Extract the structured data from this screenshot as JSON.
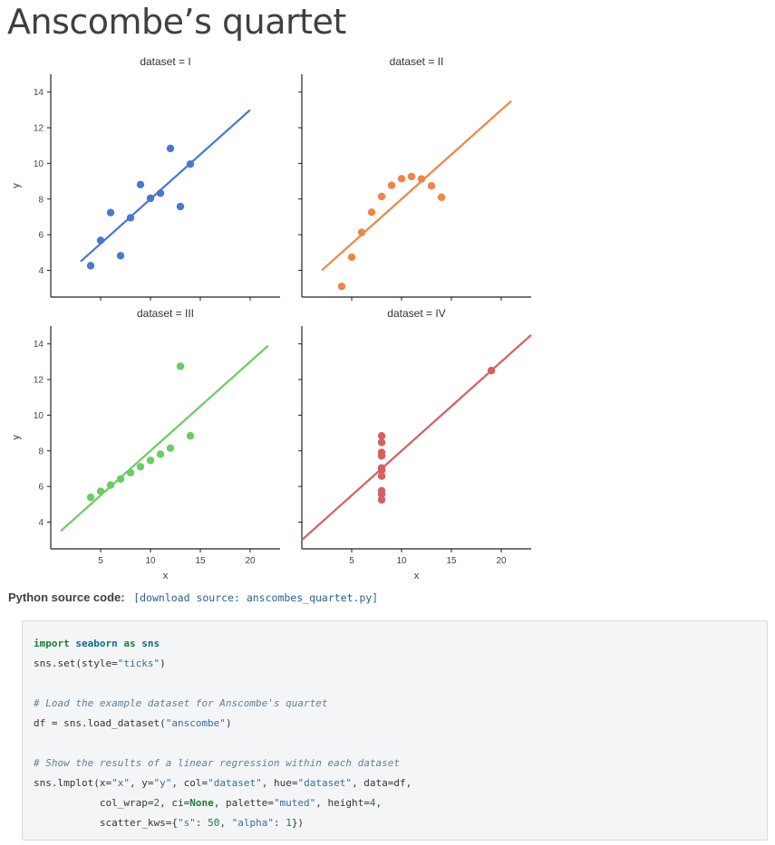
{
  "page": {
    "title": "Anscombe’s quartet",
    "source_label": "Python source code:",
    "download_link": "[download source: anscombes_quartet.py]"
  },
  "code": {
    "l1_kw1": "import",
    "l1_mod": "seaborn",
    "l1_kw2": "as",
    "l1_alias": "sns",
    "l2_a": "sns.set(style=",
    "l2_str": "\"ticks\"",
    "l2_b": ")",
    "l4_comment": "# Load the example dataset for Anscombe's quartet",
    "l5_a": "df = sns.load_dataset(",
    "l5_str": "\"anscombe\"",
    "l5_b": ")",
    "l7_comment": "# Show the results of a linear regression within each dataset",
    "l8_a": "sns.lmplot(x=",
    "l8_s1": "\"x\"",
    "l8_b": ", y=",
    "l8_s2": "\"y\"",
    "l8_c": ", col=",
    "l8_s3": "\"dataset\"",
    "l8_d": ", hue=",
    "l8_s4": "\"dataset\"",
    "l8_e": ", data=df,",
    "l9_a": "           col_wrap=",
    "l9_n1": "2",
    "l9_b": ", ci=",
    "l9_none": "None",
    "l9_c": ", palette=",
    "l9_s1": "\"muted\"",
    "l9_d": ", height=",
    "l9_n2": "4",
    "l9_e": ",",
    "l10_a": "           scatter_kws={",
    "l10_s1": "\"s\"",
    "l10_b": ": ",
    "l10_n1": "50",
    "l10_c": ", ",
    "l10_s2": "\"alpha\"",
    "l10_d": ": ",
    "l10_n2": "1",
    "l10_e": "})"
  },
  "chart_data": {
    "type": "scatter",
    "xlabel": "x",
    "ylabel": "y",
    "xlim": [
      0,
      23
    ],
    "ylim": [
      2.5,
      15
    ],
    "xticks": [
      5,
      10,
      15,
      20
    ],
    "yticks": [
      4,
      6,
      8,
      10,
      12,
      14
    ],
    "grid": false,
    "facets": [
      {
        "title": "dataset = I",
        "color": "#4878d0",
        "x": [
          10,
          8,
          13,
          9,
          11,
          14,
          6,
          4,
          12,
          7,
          5
        ],
        "y": [
          8.04,
          6.95,
          7.58,
          8.81,
          8.33,
          9.96,
          7.24,
          4.26,
          10.84,
          4.82,
          5.68
        ],
        "fit": {
          "x": [
            3,
            20
          ],
          "y": [
            4.5,
            13.0
          ]
        }
      },
      {
        "title": "dataset = II",
        "color": "#ee854a",
        "x": [
          10,
          8,
          13,
          9,
          11,
          14,
          6,
          4,
          12,
          7,
          5
        ],
        "y": [
          9.14,
          8.14,
          8.74,
          8.77,
          9.26,
          8.1,
          6.13,
          3.1,
          9.13,
          7.26,
          4.74
        ],
        "fit": {
          "x": [
            2,
            21
          ],
          "y": [
            4.0,
            13.5
          ]
        }
      },
      {
        "title": "dataset = III",
        "color": "#6acc64",
        "x": [
          10,
          8,
          13,
          9,
          11,
          14,
          6,
          4,
          12,
          7,
          5
        ],
        "y": [
          7.46,
          6.77,
          12.74,
          7.11,
          7.81,
          8.84,
          6.08,
          5.39,
          8.15,
          6.42,
          5.73
        ],
        "fit": {
          "x": [
            1,
            21.8
          ],
          "y": [
            3.5,
            13.9
          ]
        }
      },
      {
        "title": "dataset = IV",
        "color": "#d65f5f",
        "x": [
          8,
          8,
          8,
          8,
          8,
          8,
          8,
          19,
          8,
          8,
          8
        ],
        "y": [
          6.58,
          5.76,
          7.71,
          8.84,
          8.47,
          7.04,
          5.25,
          12.5,
          5.56,
          7.91,
          6.89
        ],
        "fit": {
          "x": [
            0,
            23
          ],
          "y": [
            3.0,
            14.5
          ]
        }
      }
    ]
  }
}
